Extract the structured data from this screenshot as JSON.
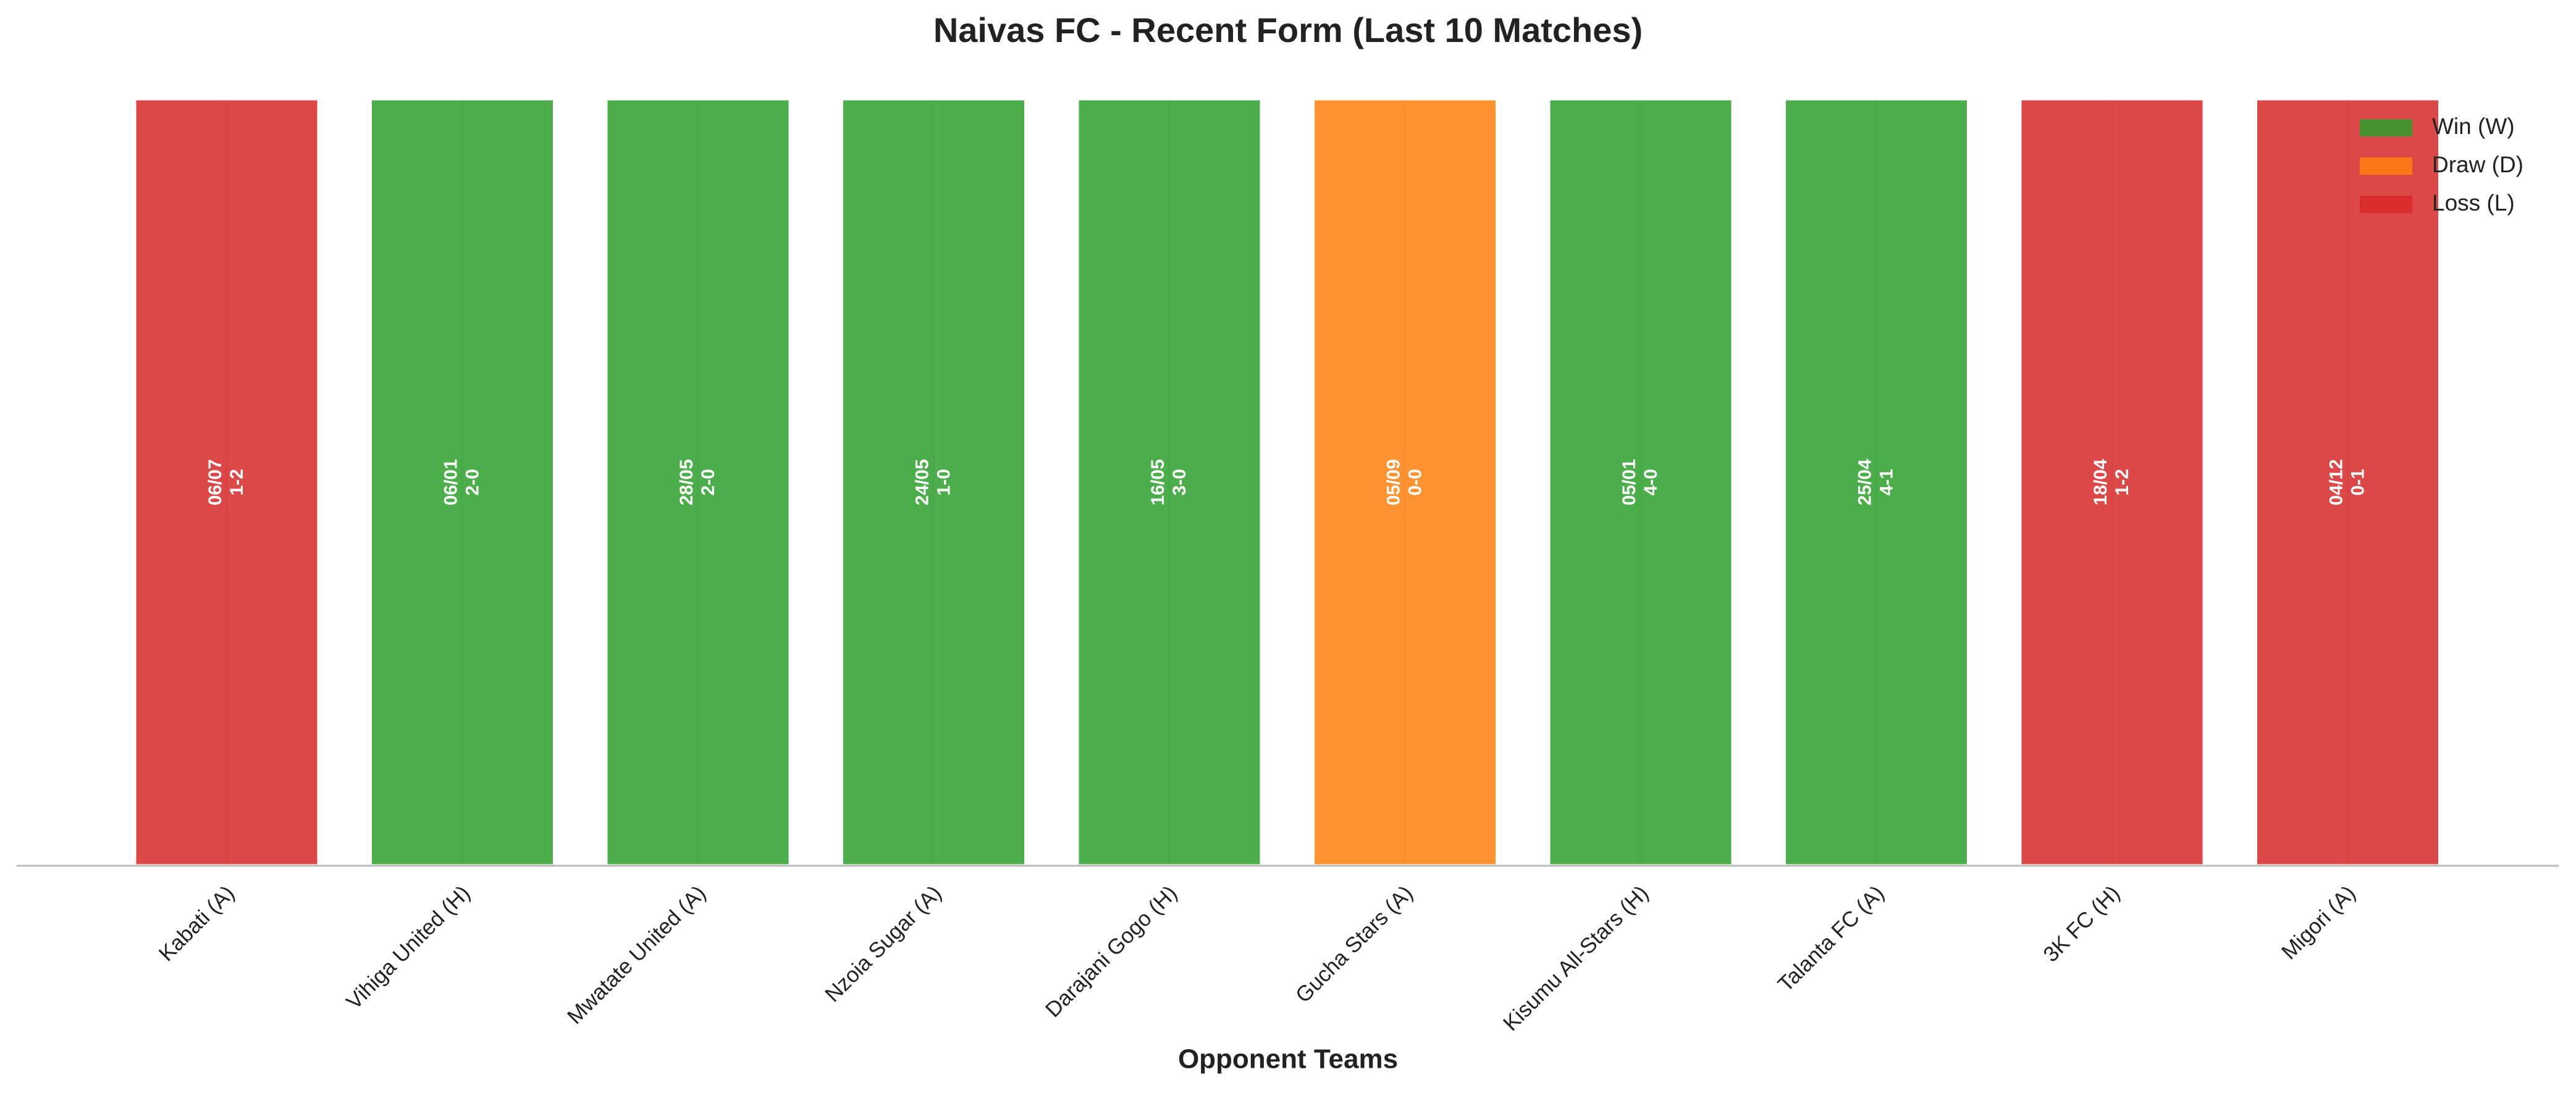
{
  "chart_data": {
    "type": "bar",
    "title": "Naivas FC - Recent Form (Last 10 Matches)",
    "xlabel": "Opponent Teams",
    "categories": [
      "Kabati (A)",
      "Vihiga United (H)",
      "Mwatate United (A)",
      "Nzoia Sugar (A)",
      "Darajani Gogo (H)",
      "Gucha Stars (A)",
      "Kisumu All-Stars (H)",
      "Talanta FC (A)",
      "3K FC (H)",
      "Migori (A)"
    ],
    "values": [
      1,
      1,
      1,
      1,
      1,
      1,
      1,
      1,
      1,
      1
    ],
    "dates": [
      "06/07",
      "06/01",
      "28/05",
      "24/05",
      "16/05",
      "05/09",
      "05/01",
      "25/04",
      "18/04",
      "04/12"
    ],
    "scores": [
      "1-2",
      "2-0",
      "2-0",
      "1-0",
      "3-0",
      "0-0",
      "4-0",
      "4-1",
      "1-2",
      "0-1"
    ],
    "colors": [
      "#d62728",
      "#2ca02c",
      "#2ca02c",
      "#2ca02c",
      "#2ca02c",
      "#ff7f0e",
      "#2ca02c",
      "#2ca02c",
      "#d62728",
      "#d62728"
    ],
    "legend": [
      {
        "name": "Win (W)",
        "color": "#2ca02c"
      },
      {
        "name": "Draw (D)",
        "color": "#ff7f0e"
      },
      {
        "name": "Loss (L)",
        "color": "#d62728"
      }
    ],
    "legend_position": "upper right",
    "ylim": [
      0,
      1
    ],
    "grid": true
  }
}
